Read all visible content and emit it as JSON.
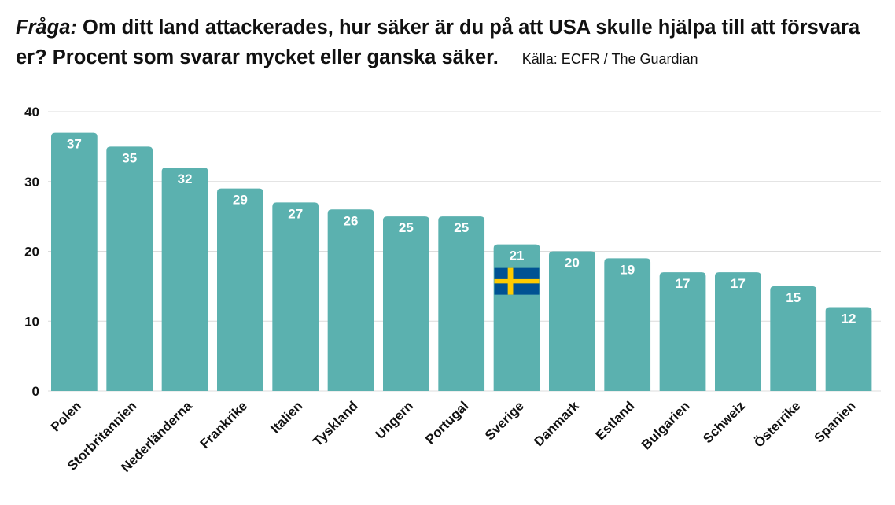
{
  "header": {
    "question_label": "Fråga:",
    "question_text": " Om ditt land attackerades, hur säker är du på att USA skulle hjälpa till att försvara er? Procent som svarar mycket eller ganska säker.",
    "source": "Källa: ECFR / The Guardian"
  },
  "chart_data": {
    "type": "bar",
    "title": "Fråga: Om ditt land attackerades, hur säker är du på att USA skulle hjälpa till att försvara er? Procent som svarar mycket eller ganska säker.",
    "xlabel": "",
    "ylabel": "",
    "ylim": [
      0,
      40
    ],
    "yticks": [
      0,
      10,
      20,
      30,
      40
    ],
    "grid": true,
    "categories": [
      "Polen",
      "Storbritannien",
      "Nederländerna",
      "Frankrike",
      "Italien",
      "Tyskland",
      "Ungern",
      "Portugal",
      "Sverige",
      "Danmark",
      "Estland",
      "Bulgarien",
      "Schweiz",
      "Österrike",
      "Spanien"
    ],
    "values": [
      37,
      35,
      32,
      29,
      27,
      26,
      25,
      25,
      21,
      20,
      19,
      17,
      17,
      15,
      12
    ],
    "bar_color": "#5bb1af",
    "highlight": {
      "category": "Sverige",
      "icon": "swedish-flag-icon"
    },
    "flag_colors": {
      "blue": "#005293",
      "yellow": "#fecb00"
    }
  }
}
